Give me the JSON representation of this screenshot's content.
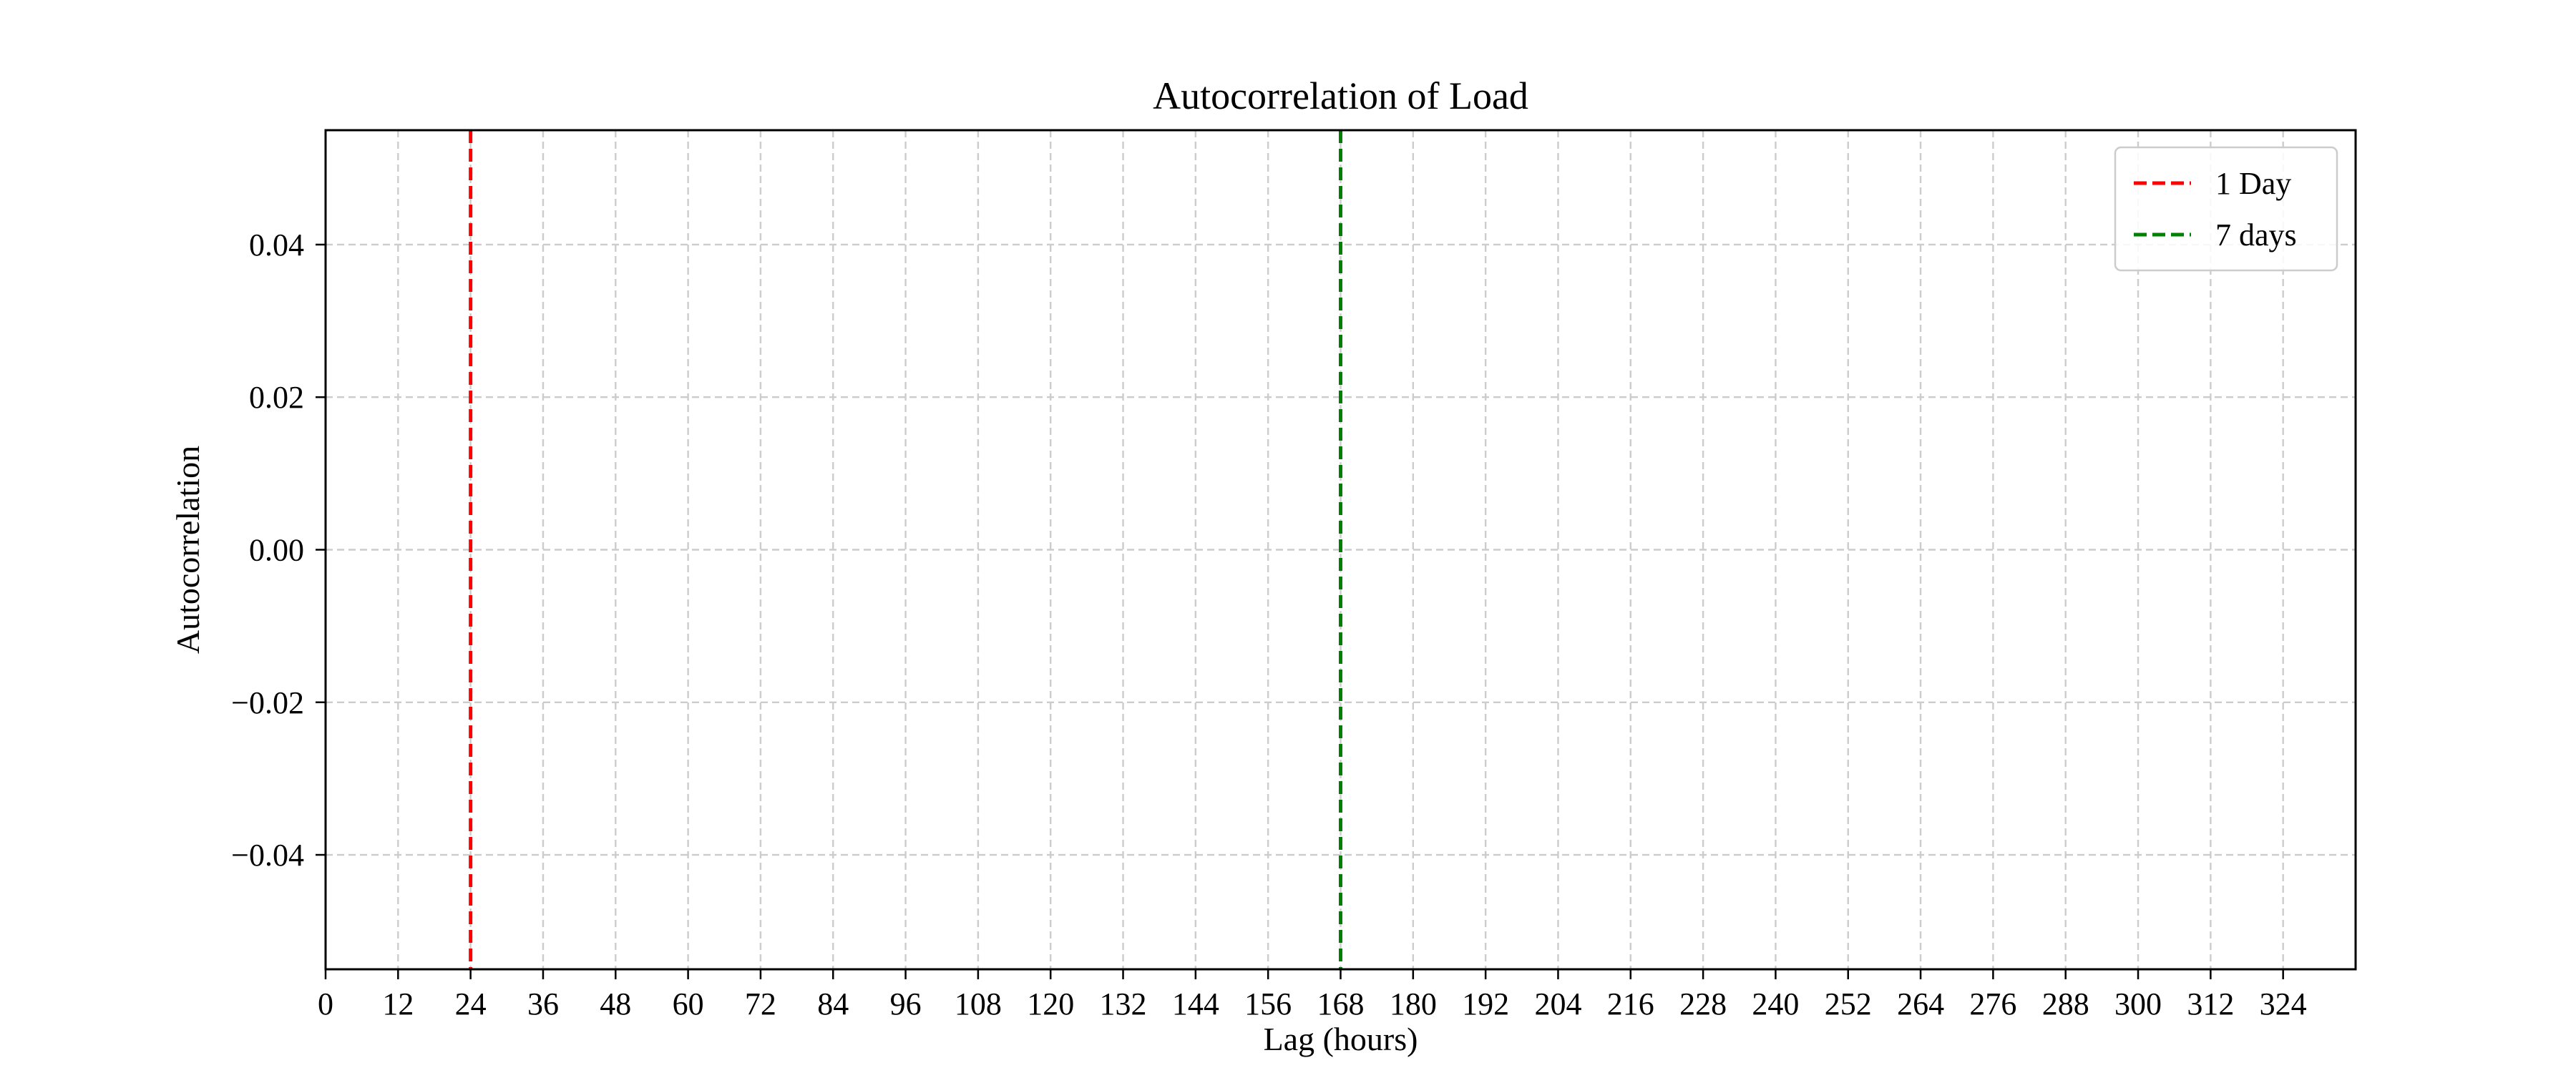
{
  "chart_data": {
    "type": "line",
    "title": "Autocorrelation of Load",
    "xlabel": "Lag (hours)",
    "ylabel": "Autocorrelation",
    "xlim": [
      0,
      336
    ],
    "ylim": [
      -0.055,
      0.055
    ],
    "xticks": [
      0,
      12,
      24,
      36,
      48,
      60,
      72,
      84,
      96,
      108,
      120,
      132,
      144,
      156,
      168,
      180,
      192,
      204,
      216,
      228,
      240,
      252,
      264,
      276,
      288,
      300,
      312,
      324
    ],
    "yticks": [
      -0.04,
      -0.02,
      0.0,
      0.02,
      0.04
    ],
    "ytick_labels": [
      "−0.04",
      "−0.02",
      "0.00",
      "0.02",
      "0.04"
    ],
    "grid": true,
    "legend_position": "top-right",
    "series": [],
    "reference_lines": [
      {
        "name": "1 Day",
        "x": 24,
        "color": "#ff0000",
        "style": "dashed"
      },
      {
        "name": "7 days",
        "x": 168,
        "color": "#008000",
        "style": "dashed"
      }
    ]
  }
}
